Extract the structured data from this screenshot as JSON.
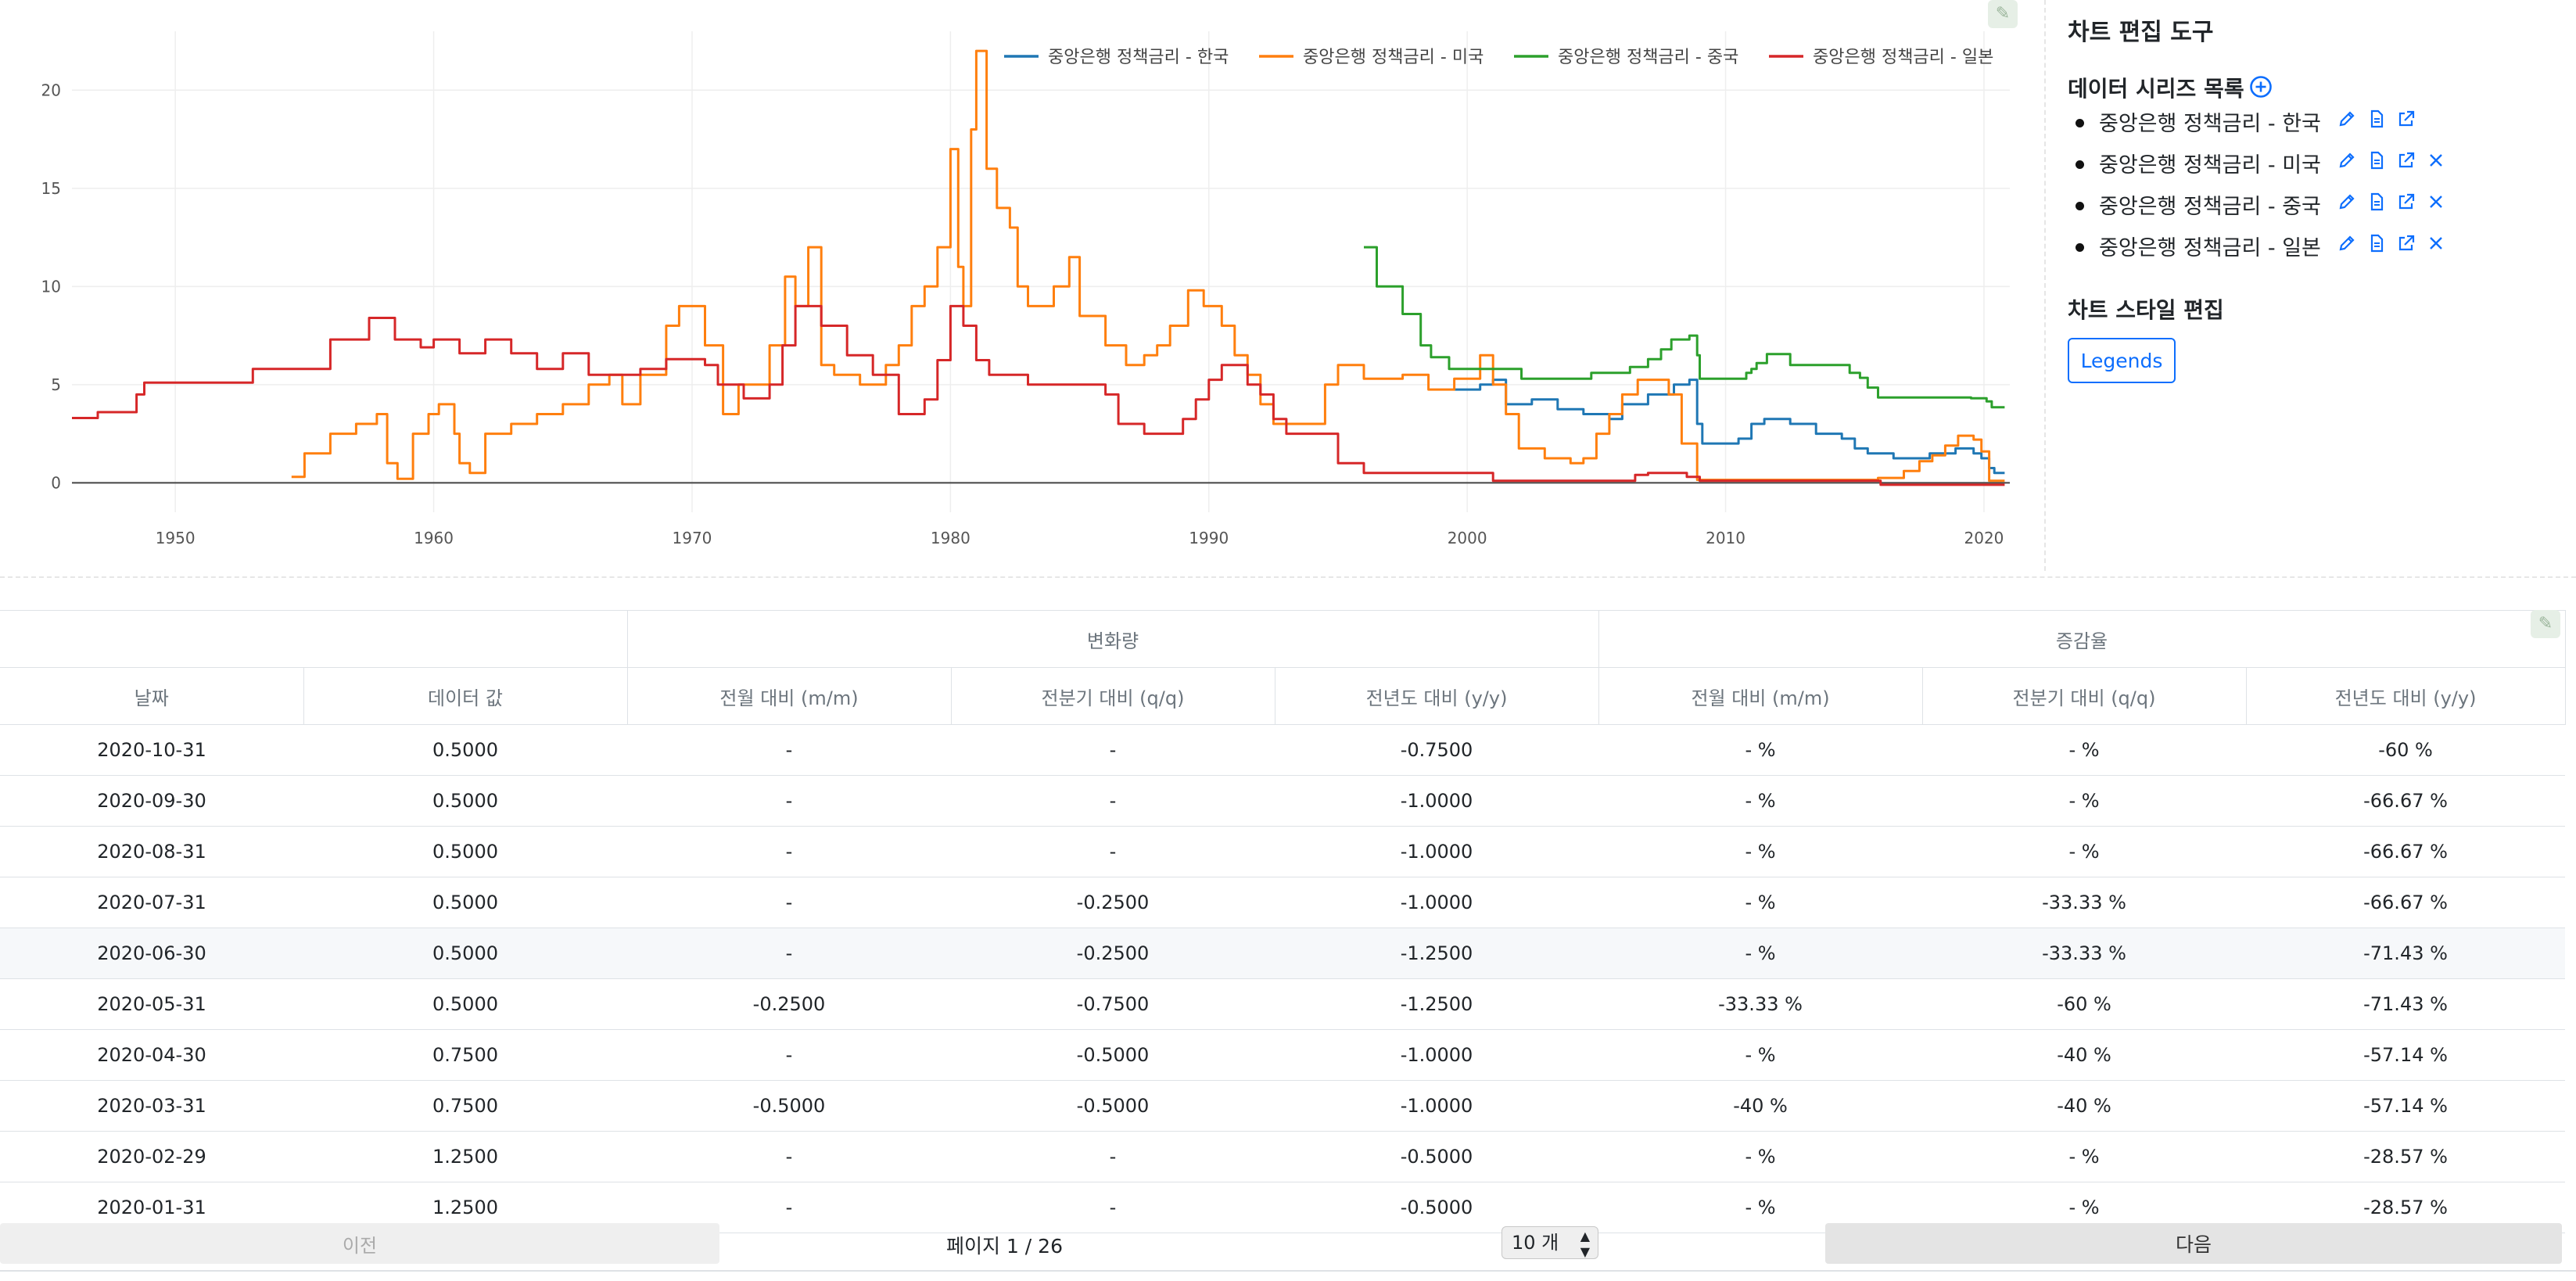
{
  "panel": {
    "title": "차트 편집 도구",
    "series_heading": "데이터 시리즈 목록",
    "series": [
      {
        "label": "중앙은행 정책금리 - 한국",
        "removable": false
      },
      {
        "label": "중앙은행 정책금리 - 미국",
        "removable": true
      },
      {
        "label": "중앙은행 정책금리 - 중국",
        "removable": true
      },
      {
        "label": "중앙은행 정책금리 - 일본",
        "removable": true
      }
    ],
    "style_heading": "차트 스타일 편집",
    "legends_button": "Legends"
  },
  "colors": {
    "korea": "#1f77b4",
    "usa": "#ff7f0e",
    "china": "#2ca02c",
    "japan": "#d62728",
    "accent": "#0d6efd"
  },
  "chart_data": {
    "type": "line",
    "legend_position": "top-right",
    "grid": true,
    "xlim": [
      1946,
      2021
    ],
    "ylim": [
      -1.5,
      23
    ],
    "x_ticks": [
      1950,
      1960,
      1970,
      1980,
      1990,
      2000,
      2010,
      2020
    ],
    "y_ticks": [
      0,
      5,
      10,
      15,
      20
    ],
    "series": [
      {
        "name": "중앙은행 정책금리 - 한국",
        "color": "#1f77b4",
        "points": [
          [
            1999.5,
            4.75
          ],
          [
            2000.5,
            5.0
          ],
          [
            2001.0,
            5.25
          ],
          [
            2001.5,
            4.0
          ],
          [
            2002.5,
            4.25
          ],
          [
            2003.5,
            3.75
          ],
          [
            2004.5,
            3.5
          ],
          [
            2005.5,
            3.25
          ],
          [
            2006.0,
            4.0
          ],
          [
            2007.0,
            4.5
          ],
          [
            2008.0,
            5.0
          ],
          [
            2008.6,
            5.25
          ],
          [
            2008.9,
            3.0
          ],
          [
            2009.1,
            2.0
          ],
          [
            2010.5,
            2.25
          ],
          [
            2011.0,
            3.0
          ],
          [
            2011.5,
            3.25
          ],
          [
            2012.5,
            3.0
          ],
          [
            2013.5,
            2.5
          ],
          [
            2014.5,
            2.25
          ],
          [
            2015.0,
            1.75
          ],
          [
            2015.5,
            1.5
          ],
          [
            2016.5,
            1.25
          ],
          [
            2017.9,
            1.5
          ],
          [
            2018.9,
            1.75
          ],
          [
            2019.6,
            1.5
          ],
          [
            2019.9,
            1.25
          ],
          [
            2020.2,
            0.75
          ],
          [
            2020.4,
            0.5
          ],
          [
            2020.8,
            0.5
          ]
        ]
      },
      {
        "name": "중앙은행 정책금리 - 미국",
        "color": "#ff7f0e",
        "points": [
          [
            1954.5,
            0.3
          ],
          [
            1955.0,
            1.5
          ],
          [
            1956.0,
            2.5
          ],
          [
            1957.0,
            3.0
          ],
          [
            1957.8,
            3.5
          ],
          [
            1958.2,
            1.0
          ],
          [
            1958.6,
            0.2
          ],
          [
            1959.2,
            2.5
          ],
          [
            1959.8,
            3.5
          ],
          [
            1960.2,
            4.0
          ],
          [
            1960.8,
            2.5
          ],
          [
            1961.0,
            1.0
          ],
          [
            1961.4,
            0.5
          ],
          [
            1962.0,
            2.5
          ],
          [
            1963.0,
            3.0
          ],
          [
            1964.0,
            3.5
          ],
          [
            1965.0,
            4.0
          ],
          [
            1966.0,
            5.0
          ],
          [
            1966.8,
            5.5
          ],
          [
            1967.3,
            4.0
          ],
          [
            1968.0,
            5.5
          ],
          [
            1969.0,
            8.0
          ],
          [
            1969.5,
            9.0
          ],
          [
            1970.5,
            7.0
          ],
          [
            1971.2,
            3.5
          ],
          [
            1971.8,
            5.0
          ],
          [
            1972.5,
            5.0
          ],
          [
            1973.0,
            7.0
          ],
          [
            1973.6,
            10.5
          ],
          [
            1974.0,
            9.0
          ],
          [
            1974.5,
            12.0
          ],
          [
            1975.0,
            6.0
          ],
          [
            1975.5,
            5.5
          ],
          [
            1976.5,
            5.0
          ],
          [
            1977.5,
            6.0
          ],
          [
            1978.0,
            7.0
          ],
          [
            1978.5,
            9.0
          ],
          [
            1979.0,
            10.0
          ],
          [
            1979.5,
            12.0
          ],
          [
            1980.0,
            17.0
          ],
          [
            1980.3,
            11.0
          ],
          [
            1980.5,
            9.0
          ],
          [
            1980.8,
            18.0
          ],
          [
            1981.0,
            22.0
          ],
          [
            1981.4,
            16.0
          ],
          [
            1981.8,
            14.0
          ],
          [
            1982.3,
            13.0
          ],
          [
            1982.6,
            10.0
          ],
          [
            1983.0,
            9.0
          ],
          [
            1984.0,
            10.0
          ],
          [
            1984.6,
            11.5
          ],
          [
            1985.0,
            8.5
          ],
          [
            1986.0,
            7.0
          ],
          [
            1986.8,
            6.0
          ],
          [
            1987.5,
            6.5
          ],
          [
            1988.0,
            7.0
          ],
          [
            1988.5,
            8.0
          ],
          [
            1989.2,
            9.8
          ],
          [
            1989.8,
            9.0
          ],
          [
            1990.5,
            8.0
          ],
          [
            1991.0,
            6.5
          ],
          [
            1991.5,
            5.5
          ],
          [
            1992.0,
            4.0
          ],
          [
            1992.5,
            3.0
          ],
          [
            1993.5,
            3.0
          ],
          [
            1994.5,
            5.0
          ],
          [
            1995.0,
            6.0
          ],
          [
            1996.0,
            5.3
          ],
          [
            1997.5,
            5.5
          ],
          [
            1998.5,
            4.75
          ],
          [
            1999.5,
            5.3
          ],
          [
            2000.5,
            6.5
          ],
          [
            2001.0,
            5.0
          ],
          [
            2001.5,
            3.5
          ],
          [
            2002.0,
            1.75
          ],
          [
            2003.0,
            1.25
          ],
          [
            2004.0,
            1.0
          ],
          [
            2004.5,
            1.25
          ],
          [
            2005.0,
            2.5
          ],
          [
            2005.5,
            3.5
          ],
          [
            2006.0,
            4.5
          ],
          [
            2006.6,
            5.25
          ],
          [
            2007.5,
            5.25
          ],
          [
            2007.8,
            4.5
          ],
          [
            2008.3,
            2.0
          ],
          [
            2008.9,
            0.15
          ],
          [
            2015.9,
            0.25
          ],
          [
            2016.9,
            0.6
          ],
          [
            2017.5,
            1.1
          ],
          [
            2018.0,
            1.4
          ],
          [
            2018.5,
            1.9
          ],
          [
            2019.0,
            2.4
          ],
          [
            2019.6,
            2.2
          ],
          [
            2019.9,
            1.6
          ],
          [
            2020.2,
            0.1
          ],
          [
            2020.8,
            0.1
          ]
        ]
      },
      {
        "name": "중앙은행 정책금리 - 중국",
        "color": "#2ca02c",
        "points": [
          [
            1996.0,
            12.0
          ],
          [
            1996.5,
            10.0
          ],
          [
            1997.5,
            8.6
          ],
          [
            1998.2,
            7.0
          ],
          [
            1998.6,
            6.4
          ],
          [
            1999.3,
            5.8
          ],
          [
            2002.1,
            5.3
          ],
          [
            2004.8,
            5.6
          ],
          [
            2006.3,
            5.9
          ],
          [
            2007.0,
            6.3
          ],
          [
            2007.5,
            6.8
          ],
          [
            2007.9,
            7.3
          ],
          [
            2008.6,
            7.5
          ],
          [
            2008.9,
            6.5
          ],
          [
            2009.0,
            5.3
          ],
          [
            2010.8,
            5.6
          ],
          [
            2011.0,
            5.8
          ],
          [
            2011.2,
            6.1
          ],
          [
            2011.6,
            6.56
          ],
          [
            2012.5,
            6.0
          ],
          [
            2014.8,
            5.6
          ],
          [
            2015.2,
            5.35
          ],
          [
            2015.5,
            4.85
          ],
          [
            2015.9,
            4.35
          ],
          [
            2019.5,
            4.31
          ],
          [
            2020.1,
            4.15
          ],
          [
            2020.3,
            3.85
          ],
          [
            2020.8,
            3.85
          ]
        ]
      },
      {
        "name": "중앙은행 정책금리 - 일본",
        "color": "#d62728",
        "points": [
          [
            1946.0,
            3.3
          ],
          [
            1947.0,
            3.6
          ],
          [
            1948.5,
            4.5
          ],
          [
            1948.8,
            5.1
          ],
          [
            1951.0,
            5.1
          ],
          [
            1953.0,
            5.8
          ],
          [
            1955.0,
            5.8
          ],
          [
            1956.0,
            7.3
          ],
          [
            1957.0,
            7.3
          ],
          [
            1957.5,
            8.4
          ],
          [
            1958.5,
            7.3
          ],
          [
            1959.5,
            6.9
          ],
          [
            1960.0,
            7.3
          ],
          [
            1961.0,
            6.6
          ],
          [
            1962.0,
            7.3
          ],
          [
            1963.0,
            6.6
          ],
          [
            1964.0,
            5.8
          ],
          [
            1965.0,
            6.6
          ],
          [
            1966.0,
            5.5
          ],
          [
            1968.0,
            5.8
          ],
          [
            1969.0,
            6.3
          ],
          [
            1970.5,
            6.0
          ],
          [
            1971.0,
            5.0
          ],
          [
            1972.0,
            4.3
          ],
          [
            1973.0,
            5.0
          ],
          [
            1973.5,
            7.0
          ],
          [
            1974.0,
            9.0
          ],
          [
            1975.0,
            8.0
          ],
          [
            1976.0,
            6.5
          ],
          [
            1977.0,
            5.5
          ],
          [
            1978.0,
            3.5
          ],
          [
            1979.0,
            4.25
          ],
          [
            1979.5,
            6.25
          ],
          [
            1980.0,
            9.0
          ],
          [
            1980.5,
            8.0
          ],
          [
            1981.0,
            6.25
          ],
          [
            1981.5,
            5.5
          ],
          [
            1983.0,
            5.0
          ],
          [
            1986.0,
            4.5
          ],
          [
            1986.5,
            3.0
          ],
          [
            1987.5,
            2.5
          ],
          [
            1989.0,
            3.25
          ],
          [
            1989.5,
            4.25
          ],
          [
            1990.0,
            5.25
          ],
          [
            1990.5,
            6.0
          ],
          [
            1991.5,
            5.0
          ],
          [
            1992.0,
            4.5
          ],
          [
            1992.5,
            3.25
          ],
          [
            1993.0,
            2.5
          ],
          [
            1995.0,
            1.0
          ],
          [
            1996.0,
            0.5
          ],
          [
            2001.0,
            0.1
          ],
          [
            2001.5,
            0.1
          ],
          [
            2006.5,
            0.4
          ],
          [
            2007.0,
            0.5
          ],
          [
            2008.5,
            0.3
          ],
          [
            2009.0,
            0.1
          ],
          [
            2016.0,
            -0.1
          ],
          [
            2020.8,
            -0.1
          ]
        ]
      }
    ]
  },
  "table": {
    "group_headers": [
      "변화량",
      "증감율"
    ],
    "columns": [
      "날짜",
      "데이터 값",
      "전월 대비 (m/m)",
      "전분기 대비 (q/q)",
      "전년도 대비 (y/y)",
      "전월 대비 (m/m)",
      "전분기 대비 (q/q)",
      "전년도 대비 (y/y)"
    ],
    "rows": [
      [
        "2020-10-31",
        "0.5000",
        "-",
        "-",
        "-0.7500",
        "- %",
        "- %",
        "-60 %"
      ],
      [
        "2020-09-30",
        "0.5000",
        "-",
        "-",
        "-1.0000",
        "- %",
        "- %",
        "-66.67 %"
      ],
      [
        "2020-08-31",
        "0.5000",
        "-",
        "-",
        "-1.0000",
        "- %",
        "- %",
        "-66.67 %"
      ],
      [
        "2020-07-31",
        "0.5000",
        "-",
        "-0.2500",
        "-1.0000",
        "- %",
        "-33.33 %",
        "-66.67 %"
      ],
      [
        "2020-06-30",
        "0.5000",
        "-",
        "-0.2500",
        "-1.2500",
        "- %",
        "-33.33 %",
        "-71.43 %"
      ],
      [
        "2020-05-31",
        "0.5000",
        "-0.2500",
        "-0.7500",
        "-1.2500",
        "-33.33 %",
        "-60 %",
        "-71.43 %"
      ],
      [
        "2020-04-30",
        "0.7500",
        "-",
        "-0.5000",
        "-1.0000",
        "- %",
        "-40 %",
        "-57.14 %"
      ],
      [
        "2020-03-31",
        "0.7500",
        "-0.5000",
        "-0.5000",
        "-1.0000",
        "-40 %",
        "-40 %",
        "-57.14 %"
      ],
      [
        "2020-02-29",
        "1.2500",
        "-",
        "-",
        "-0.5000",
        "- %",
        "- %",
        "-28.57 %"
      ],
      [
        "2020-01-31",
        "1.2500",
        "-",
        "-",
        "-0.5000",
        "- %",
        "- %",
        "-28.57 %"
      ]
    ],
    "highlighted_row": 4
  },
  "pagination": {
    "prev_label": "이전",
    "page_info": "페이지 1 / 26",
    "page_size": "10 개",
    "next_label": "다음"
  }
}
